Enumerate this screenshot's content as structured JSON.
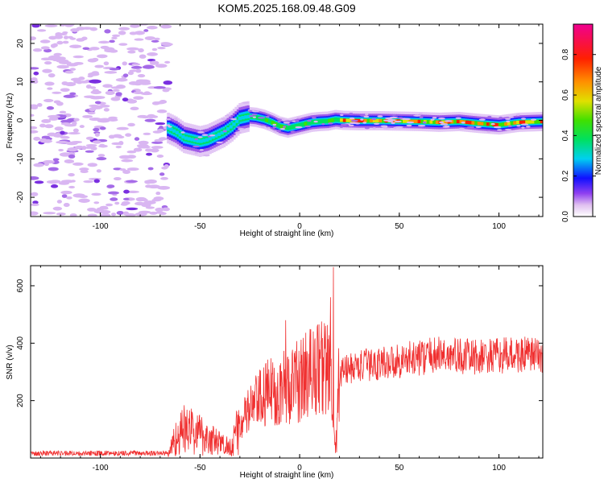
{
  "title": "KOM5.2025.168.09.48.G09",
  "chart_data": [
    {
      "type": "heatmap",
      "name": "spectrogram",
      "xlabel": "Height of straight line (km)",
      "ylabel": "Frequency (Hz)",
      "xlim": [
        -135,
        122
      ],
      "ylim": [
        -25,
        25
      ],
      "xticks": [
        -100,
        -50,
        0,
        50,
        100
      ],
      "yticks": [
        -20,
        -10,
        0,
        10,
        20
      ],
      "noise_region_x": [
        -135,
        -66
      ],
      "signal_track": [
        {
          "x": -66,
          "y": -2.0
        },
        {
          "x": -62,
          "y": -3.0
        },
        {
          "x": -58,
          "y": -4.5
        },
        {
          "x": -54,
          "y": -5.0
        },
        {
          "x": -50,
          "y": -5.5
        },
        {
          "x": -46,
          "y": -5.0
        },
        {
          "x": -42,
          "y": -4.0
        },
        {
          "x": -38,
          "y": -3.0
        },
        {
          "x": -34,
          "y": -1.5
        },
        {
          "x": -30,
          "y": 0.5
        },
        {
          "x": -26,
          "y": 1.0
        },
        {
          "x": -22,
          "y": 0.8
        },
        {
          "x": -18,
          "y": 0.3
        },
        {
          "x": -14,
          "y": -0.5
        },
        {
          "x": -10,
          "y": -1.5
        },
        {
          "x": -6,
          "y": -2.0
        },
        {
          "x": -2,
          "y": -1.5
        },
        {
          "x": 2,
          "y": -1.0
        },
        {
          "x": 6,
          "y": -0.5
        },
        {
          "x": 10,
          "y": -0.3
        },
        {
          "x": 14,
          "y": -0.2
        },
        {
          "x": 18,
          "y": 0.2
        },
        {
          "x": 22,
          "y": 0.0
        },
        {
          "x": 30,
          "y": -0.1
        },
        {
          "x": 40,
          "y": -0.1
        },
        {
          "x": 50,
          "y": -0.2
        },
        {
          "x": 60,
          "y": -0.3
        },
        {
          "x": 70,
          "y": -0.5
        },
        {
          "x": 80,
          "y": -0.3
        },
        {
          "x": 90,
          "y": -0.8
        },
        {
          "x": 100,
          "y": -1.2
        },
        {
          "x": 110,
          "y": -0.5
        },
        {
          "x": 122,
          "y": -0.3
        }
      ],
      "colorbar": {
        "label": "Normalized spectral amplitude",
        "range": [
          0,
          0.95
        ],
        "ticks": [
          0.0,
          0.2,
          0.4,
          0.6,
          0.8
        ],
        "tick_labels": [
          "0.0",
          "0.2",
          "0.4",
          "0.6",
          "0.8"
        ]
      }
    },
    {
      "type": "line",
      "name": "snr",
      "xlabel": "Height of straight line (km)",
      "ylabel": "SNR (v/v)",
      "xlim": [
        -135,
        122
      ],
      "ylim": [
        0,
        670
      ],
      "xticks": [
        -100,
        -50,
        0,
        50,
        100
      ],
      "yticks": [
        200,
        400,
        600
      ],
      "color": "#f03030",
      "envelope": [
        {
          "x": -135,
          "y": 15
        },
        {
          "x": -66,
          "y": 15
        },
        {
          "x": -63,
          "y": 60
        },
        {
          "x": -58,
          "y": 100
        },
        {
          "x": -52,
          "y": 90
        },
        {
          "x": -46,
          "y": 70
        },
        {
          "x": -40,
          "y": 50
        },
        {
          "x": -35,
          "y": 40
        },
        {
          "x": -30,
          "y": 110
        },
        {
          "x": -25,
          "y": 170
        },
        {
          "x": -20,
          "y": 200
        },
        {
          "x": -15,
          "y": 230
        },
        {
          "x": -10,
          "y": 240
        },
        {
          "x": -5,
          "y": 250
        },
        {
          "x": 0,
          "y": 270
        },
        {
          "x": 5,
          "y": 300
        },
        {
          "x": 10,
          "y": 320
        },
        {
          "x": 15,
          "y": 310
        },
        {
          "x": 18,
          "y": 20
        },
        {
          "x": 20,
          "y": 300
        },
        {
          "x": 30,
          "y": 320
        },
        {
          "x": 50,
          "y": 340
        },
        {
          "x": 70,
          "y": 360
        },
        {
          "x": 90,
          "y": 350
        },
        {
          "x": 110,
          "y": 360
        },
        {
          "x": 122,
          "y": 355
        }
      ],
      "peaks": [
        {
          "x": -7,
          "y": 480
        },
        {
          "x": 13,
          "y": 460
        },
        {
          "x": 17,
          "y": 665
        },
        {
          "x": 15.5,
          "y": 560
        },
        {
          "x": 18.5,
          "y": 20
        }
      ]
    }
  ]
}
